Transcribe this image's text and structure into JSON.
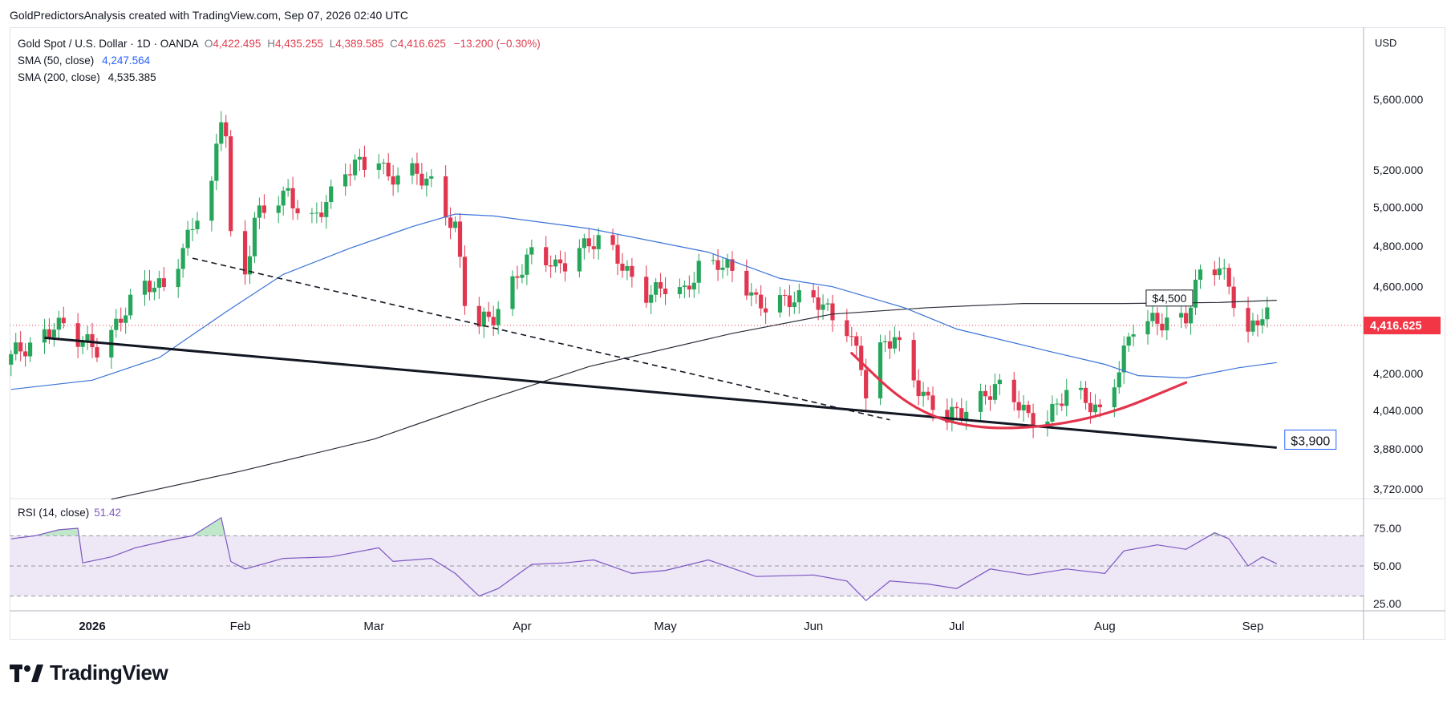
{
  "header": {
    "credit": "GoldPredictorsAnalysis created with TradingView.com, Sep 07, 2026 02:40 UTC"
  },
  "legend": {
    "symbol": "Gold Spot / U.S. Dollar · 1D · OANDA",
    "open_label": "O",
    "open": "4,422.495",
    "high_label": "H",
    "high": "4,435.255",
    "low_label": "L",
    "low": "4,389.585",
    "close_label": "C",
    "close": "4,416.625",
    "change": "−13.200 (−0.30%)",
    "sma50_label": "SMA (50, close)",
    "sma50_value": "4,247.564",
    "sma200_label": "SMA (200, close)",
    "sma200_value": "4,535.385"
  },
  "rsi_legend": {
    "label": "RSI (14, close)",
    "value": "51.42"
  },
  "currency": "USD",
  "footer": {
    "brand": "TradingView"
  },
  "colors": {
    "up": "#26a65b",
    "down": "#e0364f",
    "sma50": "#3b73d6",
    "sma200": "#2a2e39",
    "trendline": "#131722",
    "bowl": "#e3344c",
    "rsi": "#7e57c2",
    "rsi_band": "#ede7f6",
    "last_price": "#f23645"
  },
  "chart_data": {
    "type": "candlestick",
    "price_axis": {
      "ticks": [
        5600,
        5200,
        5000,
        4800,
        4600,
        4200,
        4040,
        3880,
        3720
      ],
      "tick_labels": [
        "5,600.000",
        "5,200.000",
        "5,000.000",
        "4,800.000",
        "4,600.000",
        "4,200.000",
        "4,040.000",
        "3,880.000",
        "3,720.000"
      ],
      "scale": "log"
    },
    "time_axis": {
      "labels": [
        {
          "label": "2026",
          "date": "2026-01-01"
        },
        {
          "label": "Feb",
          "date": "2026-02-01"
        },
        {
          "label": "Mar",
          "date": "2026-03-01"
        },
        {
          "label": "Apr",
          "date": "2026-04-01"
        },
        {
          "label": "May",
          "date": "2026-05-01"
        },
        {
          "label": "Jun",
          "date": "2026-06-01"
        },
        {
          "label": "Jul",
          "date": "2026-07-01"
        },
        {
          "label": "Aug",
          "date": "2026-08-01"
        },
        {
          "label": "Sep",
          "date": "2026-09-01"
        }
      ]
    },
    "last_price": {
      "value": 4416.625,
      "label": "4,416.625"
    },
    "annotations": [
      {
        "text": "$4,500",
        "price": 4500,
        "date": "2026-08-11"
      },
      {
        "text": "$3,900",
        "price": 3885,
        "date": "2026-09-06"
      }
    ],
    "close_anchors": [
      [
        "2025-12-15",
        4260
      ],
      [
        "2025-12-19",
        4340
      ],
      [
        "2025-12-24",
        4430
      ],
      [
        "2025-12-29",
        4330
      ],
      [
        "2026-01-02",
        4330
      ],
      [
        "2026-01-07",
        4460
      ],
      [
        "2026-01-12",
        4580
      ],
      [
        "2026-01-16",
        4620
      ],
      [
        "2026-01-21",
        4850
      ],
      [
        "2026-01-26",
        5080
      ],
      [
        "2026-01-28",
        5500
      ],
      [
        "2026-01-29",
        5420
      ],
      [
        "2026-01-30",
        4860
      ],
      [
        "2026-02-02",
        4680
      ],
      [
        "2026-02-04",
        4950
      ],
      [
        "2026-02-06",
        4960
      ],
      [
        "2026-02-11",
        5060
      ],
      [
        "2026-02-16",
        4960
      ],
      [
        "2026-02-20",
        5040
      ],
      [
        "2026-02-25",
        5230
      ],
      [
        "2026-03-02",
        5300
      ],
      [
        "2026-03-04",
        5150
      ],
      [
        "2026-03-09",
        5160
      ],
      [
        "2026-03-13",
        5150
      ],
      [
        "2026-03-18",
        4900
      ],
      [
        "2026-03-20",
        4520
      ],
      [
        "2026-03-23",
        4400
      ],
      [
        "2026-03-26",
        4470
      ],
      [
        "2026-03-31",
        4680
      ],
      [
        "2026-04-03",
        4740
      ],
      [
        "2026-04-08",
        4690
      ],
      [
        "2026-04-13",
        4820
      ],
      [
        "2026-04-17",
        4810
      ],
      [
        "2026-04-22",
        4700
      ],
      [
        "2026-04-27",
        4590
      ],
      [
        "2026-05-01",
        4580
      ],
      [
        "2026-05-05",
        4550
      ],
      [
        "2026-05-08",
        4720
      ],
      [
        "2026-05-12",
        4740
      ],
      [
        "2026-05-15",
        4650
      ],
      [
        "2026-05-20",
        4520
      ],
      [
        "2026-05-25",
        4560
      ],
      [
        "2026-05-29",
        4520
      ],
      [
        "2026-06-03",
        4510
      ],
      [
        "2026-06-08",
        4430
      ],
      [
        "2026-06-11",
        4230
      ],
      [
        "2026-06-12",
        4090
      ],
      [
        "2026-06-15",
        4280
      ],
      [
        "2026-06-18",
        4380
      ],
      [
        "2026-06-22",
        4200
      ],
      [
        "2026-06-25",
        4060
      ],
      [
        "2026-06-29",
        3990
      ],
      [
        "2026-07-02",
        4050
      ],
      [
        "2026-07-06",
        4110
      ],
      [
        "2026-07-09",
        4130
      ],
      [
        "2026-07-13",
        4070
      ],
      [
        "2026-07-16",
        4020
      ],
      [
        "2026-07-20",
        4030
      ],
      [
        "2026-07-24",
        4100
      ],
      [
        "2026-07-28",
        4070
      ],
      [
        "2026-07-31",
        4050
      ],
      [
        "2026-08-04",
        4240
      ],
      [
        "2026-08-07",
        4390
      ],
      [
        "2026-08-11",
        4420
      ],
      [
        "2026-08-14",
        4460
      ],
      [
        "2026-08-18",
        4470
      ],
      [
        "2026-08-21",
        4640
      ],
      [
        "2026-08-25",
        4680
      ],
      [
        "2026-08-27",
        4620
      ],
      [
        "2026-08-31",
        4400
      ],
      [
        "2026-09-03",
        4460
      ],
      [
        "2026-09-06",
        4416.625
      ]
    ],
    "sma50_points": [
      [
        "2025-12-15",
        4130
      ],
      [
        "2026-01-01",
        4170
      ],
      [
        "2026-01-15",
        4270
      ],
      [
        "2026-01-29",
        4480
      ],
      [
        "2026-02-10",
        4660
      ],
      [
        "2026-02-24",
        4790
      ],
      [
        "2026-03-09",
        4900
      ],
      [
        "2026-03-18",
        4965
      ],
      [
        "2026-03-26",
        4955
      ],
      [
        "2026-04-15",
        4890
      ],
      [
        "2026-05-10",
        4770
      ],
      [
        "2026-05-25",
        4640
      ],
      [
        "2026-06-05",
        4600
      ],
      [
        "2026-06-20",
        4500
      ],
      [
        "2026-07-01",
        4400
      ],
      [
        "2026-07-20",
        4300
      ],
      [
        "2026-08-01",
        4240
      ],
      [
        "2026-08-08",
        4190
      ],
      [
        "2026-08-18",
        4180
      ],
      [
        "2026-08-29",
        4225
      ],
      [
        "2026-09-06",
        4248
      ]
    ],
    "sma200_points": [
      [
        "2026-01-05",
        3680
      ],
      [
        "2026-02-01",
        3790
      ],
      [
        "2026-03-01",
        3920
      ],
      [
        "2026-03-24",
        4080
      ],
      [
        "2026-04-15",
        4230
      ],
      [
        "2026-05-15",
        4380
      ],
      [
        "2026-06-05",
        4470
      ],
      [
        "2026-06-25",
        4500
      ],
      [
        "2026-07-15",
        4520
      ],
      [
        "2026-08-05",
        4520
      ],
      [
        "2026-08-25",
        4525
      ],
      [
        "2026-09-06",
        4535
      ]
    ],
    "trendlines": [
      {
        "style": "solid",
        "from": [
          "2025-12-22",
          4360
        ],
        "to": [
          "2026-09-06",
          3885
        ]
      },
      {
        "style": "dashed",
        "from": [
          "2026-01-22",
          4740
        ],
        "to": [
          "2026-06-17",
          4000
        ]
      }
    ],
    "rounded_bottom": [
      [
        "2026-06-09",
        4290
      ],
      [
        "2026-06-20",
        4070
      ],
      [
        "2026-07-01",
        3975
      ],
      [
        "2026-07-15",
        3960
      ],
      [
        "2026-08-01",
        4015
      ],
      [
        "2026-08-18",
        4160
      ]
    ],
    "rsi": {
      "ticks": [
        75,
        50,
        25
      ],
      "tick_labels": [
        "75.00",
        "50.00",
        "25.00"
      ],
      "upper": 70,
      "middle": 50,
      "lower": 30,
      "points": [
        [
          "2025-12-15",
          68
        ],
        [
          "2025-12-20",
          70
        ],
        [
          "2025-12-25",
          74
        ],
        [
          "2025-12-29",
          75
        ],
        [
          "2025-12-30",
          52
        ],
        [
          "2026-01-05",
          56
        ],
        [
          "2026-01-10",
          62
        ],
        [
          "2026-01-17",
          67
        ],
        [
          "2026-01-22",
          70
        ],
        [
          "2026-01-28",
          82
        ],
        [
          "2026-01-30",
          53
        ],
        [
          "2026-02-02",
          48
        ],
        [
          "2026-02-10",
          55
        ],
        [
          "2026-02-20",
          56
        ],
        [
          "2026-03-02",
          62
        ],
        [
          "2026-03-05",
          53
        ],
        [
          "2026-03-13",
          55
        ],
        [
          "2026-03-18",
          45
        ],
        [
          "2026-03-23",
          30
        ],
        [
          "2026-03-27",
          35
        ],
        [
          "2026-04-03",
          51
        ],
        [
          "2026-04-10",
          52
        ],
        [
          "2026-04-16",
          54
        ],
        [
          "2026-04-24",
          45
        ],
        [
          "2026-05-01",
          47
        ],
        [
          "2026-05-10",
          54
        ],
        [
          "2026-05-20",
          43
        ],
        [
          "2026-06-01",
          44
        ],
        [
          "2026-06-08",
          40
        ],
        [
          "2026-06-12",
          27
        ],
        [
          "2026-06-17",
          40
        ],
        [
          "2026-06-25",
          38
        ],
        [
          "2026-07-01",
          35
        ],
        [
          "2026-07-08",
          48
        ],
        [
          "2026-07-16",
          44
        ],
        [
          "2026-07-24",
          48
        ],
        [
          "2026-08-01",
          45
        ],
        [
          "2026-08-05",
          60
        ],
        [
          "2026-08-12",
          64
        ],
        [
          "2026-08-18",
          61
        ],
        [
          "2026-08-24",
          72
        ],
        [
          "2026-08-27",
          68
        ],
        [
          "2026-08-31",
          50
        ],
        [
          "2026-09-03",
          56
        ],
        [
          "2026-09-06",
          51.42
        ]
      ]
    }
  }
}
